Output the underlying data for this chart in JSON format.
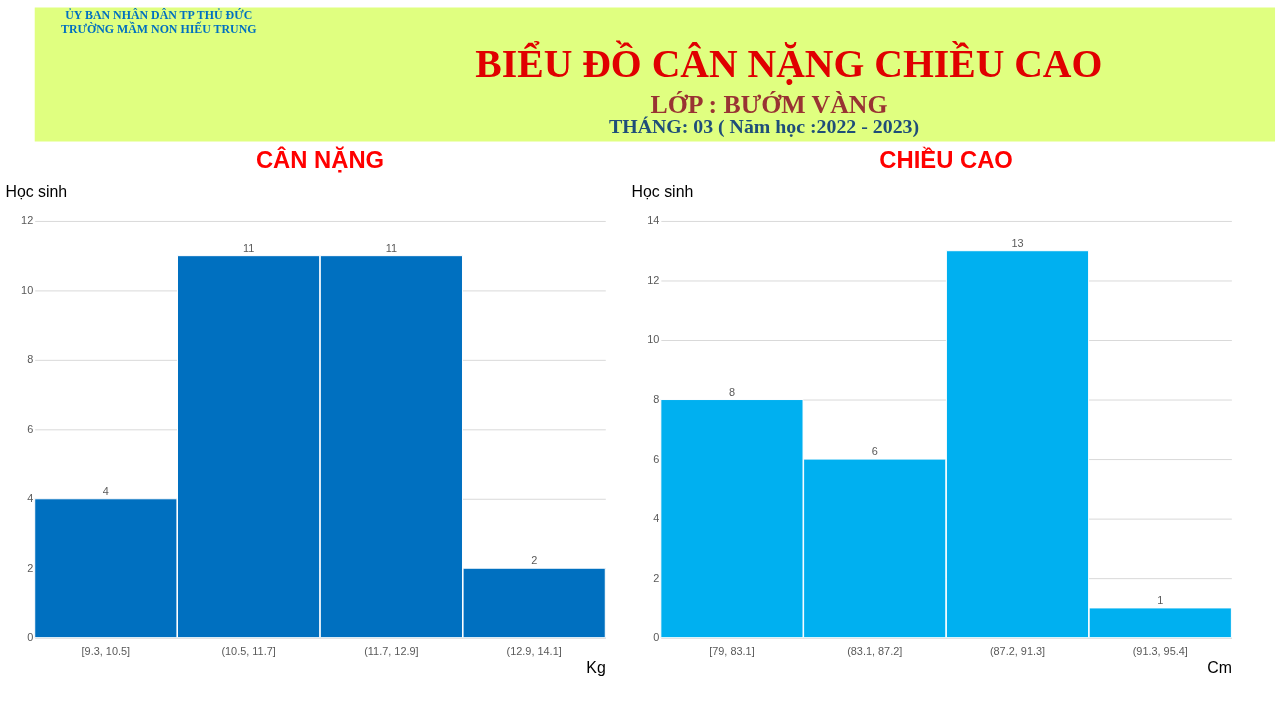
{
  "chart_data": [
    {
      "type": "other",
      "title": "BIỂU ĐỒ CÂN NẶNG CHIỀU CAO",
      "subtitle": "LỚP : BƯỚM VÀNG",
      "annotations": [
        "THÁNG: 03 ( Năm học :2022 - 2023)",
        "ỦY BAN NHÂN DÂN TP THỦ ĐỨC",
        "TRƯỜNG  MẦM  NON  HIẾU  TRUNG"
      ]
    },
    {
      "type": "bar",
      "title": "CÂN NẶNG",
      "ylabel": "Học sinh",
      "xlabel": "Kg",
      "categories": [
        "[9.3, 10.5]",
        "(10.5, 11.7]",
        "(11.7, 12.9]",
        "(12.9, 14.1]"
      ],
      "values": [
        4,
        11,
        11,
        2
      ],
      "color": "#0070c0",
      "ylim": [
        0,
        12
      ],
      "yticks": [
        0,
        2,
        4,
        6,
        8,
        10,
        12
      ],
      "grid": "y",
      "data_labels": true
    },
    {
      "type": "bar",
      "title": "CHIỀU CAO",
      "ylabel": "Học sinh",
      "xlabel": "Cm",
      "categories": [
        "[79, 83.1]",
        "(83.1, 87.2]",
        "(87.2, 91.3]",
        "(91.3, 95.4]"
      ],
      "values": [
        8,
        6,
        13,
        1
      ],
      "color": "#00b0f0",
      "ylim": [
        0,
        14
      ],
      "yticks": [
        0,
        2,
        4,
        6,
        8,
        10,
        12,
        14
      ],
      "grid": "y",
      "data_labels": true
    }
  ]
}
